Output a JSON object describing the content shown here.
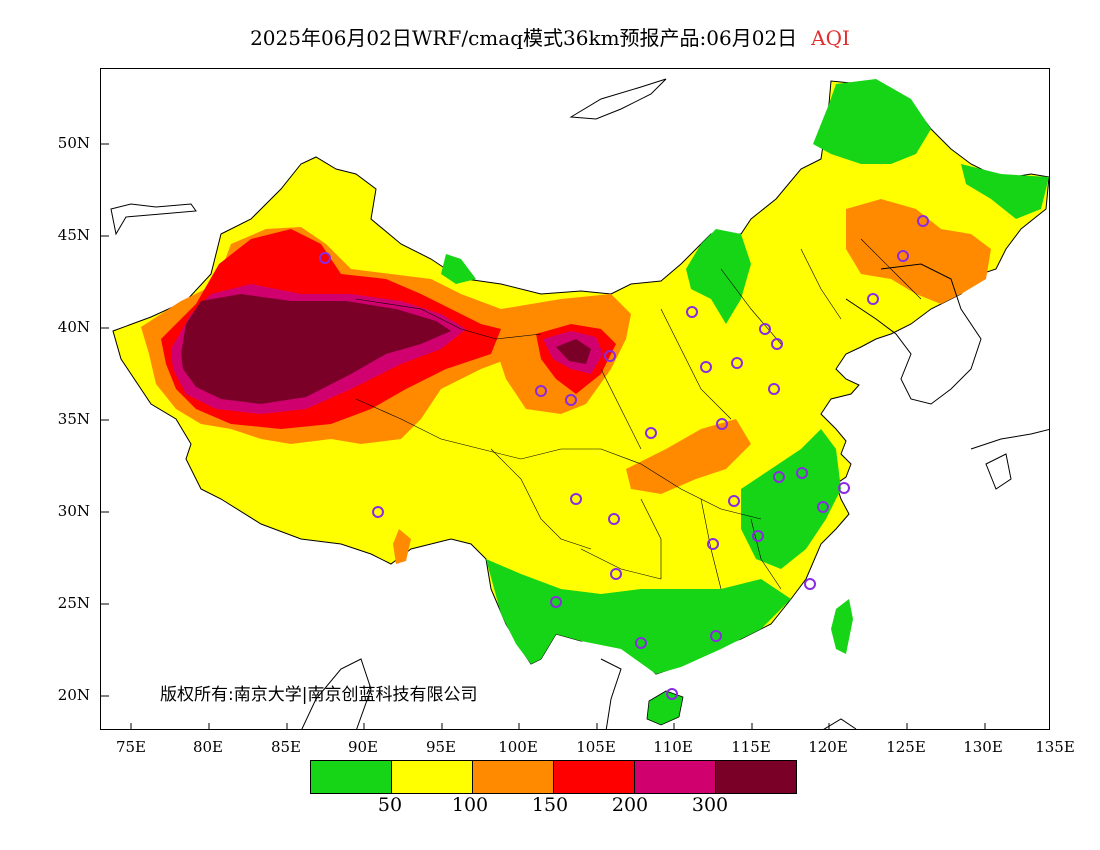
{
  "title": {
    "text": "2025年06月02日WRF/cmaq模式36km预报产品:06月02日",
    "variable": "AQI"
  },
  "axes": {
    "lat_labels": [
      "50N",
      "45N",
      "40N",
      "35N",
      "30N",
      "25N",
      "20N"
    ],
    "lon_labels": [
      "75E",
      "80E",
      "85E",
      "90E",
      "95E",
      "100E",
      "105E",
      "110E",
      "115E",
      "120E",
      "125E",
      "130E",
      "135E"
    ]
  },
  "credit": "版权所有:南京大学|南京创蓝科技有限公司",
  "legend": {
    "colors": [
      "#16d516",
      "#ffff00",
      "#ff8a00",
      "#ff0000",
      "#d0006f",
      "#7a0028"
    ],
    "labels": [
      "50",
      "100",
      "150",
      "200",
      "300"
    ]
  },
  "colors": {
    "good": "#16d516",
    "moderate": "#ffff00",
    "sensitive": "#ff8a00",
    "unhealthy": "#ff0000",
    "very_unhealthy": "#d0006f",
    "hazardous": "#7a0028",
    "station_ring": "#8a2be2"
  }
}
